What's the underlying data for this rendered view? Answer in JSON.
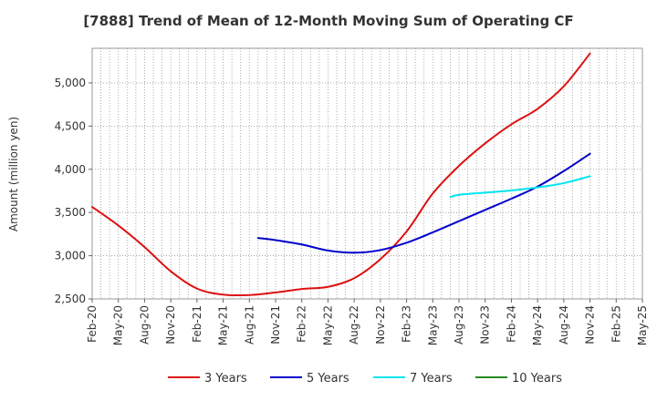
{
  "chart_data": {
    "type": "line",
    "title": "[7888]  Trend of Mean of 12-Month Moving Sum of Operating CF",
    "xlabel": "",
    "ylabel": "Amount (million yen)",
    "ylim": [
      2500,
      5400
    ],
    "yticks": [
      2500,
      3000,
      3500,
      4000,
      4500,
      5000
    ],
    "ytick_labels": [
      "2,500",
      "3,000",
      "3,500",
      "4,000",
      "4,500",
      "5,000"
    ],
    "x_categories": [
      "Feb-20",
      "May-20",
      "Aug-20",
      "Nov-20",
      "Feb-21",
      "May-21",
      "Aug-21",
      "Nov-21",
      "Feb-22",
      "May-22",
      "Aug-22",
      "Nov-22",
      "Feb-23",
      "May-23",
      "Aug-23",
      "Nov-23",
      "Feb-24",
      "May-24",
      "Aug-24",
      "Nov-24",
      "Feb-25",
      "May-25"
    ],
    "grid": true,
    "legend_position": "bottom",
    "series": [
      {
        "name": "3 Years",
        "color": "#dd1111",
        "x": [
          0,
          1,
          2,
          3,
          4,
          5,
          6,
          7,
          8,
          9,
          10,
          11,
          12,
          13,
          14,
          15,
          16,
          17,
          18,
          19
        ],
        "values": [
          3565,
          3350,
          3100,
          2820,
          2620,
          2550,
          2545,
          2575,
          2615,
          2640,
          2740,
          2960,
          3280,
          3720,
          4040,
          4300,
          4520,
          4700,
          4960,
          5340
        ]
      },
      {
        "name": "5 Years",
        "color": "#0000cc",
        "x": [
          6.33,
          7,
          8,
          9,
          10,
          11,
          12,
          13,
          14,
          15,
          16,
          17,
          18,
          19
        ],
        "values": [
          3205,
          3180,
          3130,
          3060,
          3035,
          3065,
          3150,
          3270,
          3400,
          3530,
          3660,
          3800,
          3980,
          4180
        ]
      },
      {
        "name": "7 Years",
        "color": "#00e5ee",
        "x": [
          13.67,
          14,
          15,
          16,
          17,
          18,
          19
        ],
        "values": [
          3680,
          3705,
          3730,
          3755,
          3790,
          3840,
          3920
        ]
      },
      {
        "name": "10 Years",
        "color": "#228b22",
        "x": [],
        "values": []
      }
    ]
  }
}
